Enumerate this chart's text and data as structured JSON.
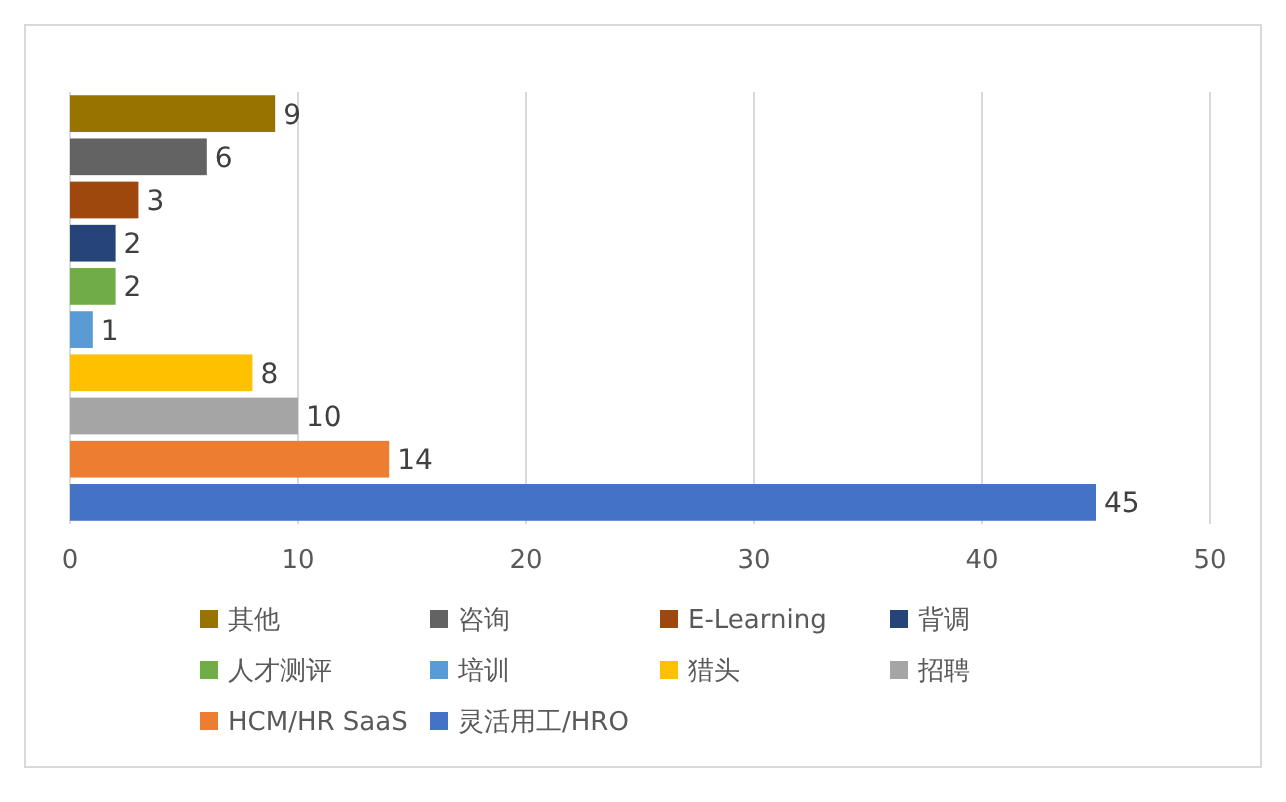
{
  "chart_data": {
    "type": "bar",
    "orientation": "horizontal",
    "categories": [
      null,
      null,
      null,
      null,
      null,
      null,
      null,
      null,
      null,
      null
    ],
    "series": [
      {
        "name": "其他",
        "color": "#997300",
        "values": [
          9,
          null,
          null,
          null,
          null,
          null,
          null,
          null,
          null,
          null
        ]
      },
      {
        "name": "咨询",
        "color": "#636363",
        "values": [
          null,
          6,
          null,
          null,
          null,
          null,
          null,
          null,
          null,
          null
        ]
      },
      {
        "name": "E-Learning",
        "color": "#9e480e",
        "values": [
          null,
          null,
          3,
          null,
          null,
          null,
          null,
          null,
          null,
          null
        ]
      },
      {
        "name": "背调",
        "color": "#264478",
        "values": [
          null,
          null,
          null,
          2,
          null,
          null,
          null,
          null,
          null,
          null
        ]
      },
      {
        "name": "人才测评",
        "color": "#70ad47",
        "values": [
          null,
          null,
          null,
          null,
          2,
          null,
          null,
          null,
          null,
          null
        ]
      },
      {
        "name": "培训",
        "color": "#5b9bd5",
        "values": [
          null,
          null,
          null,
          null,
          null,
          1,
          null,
          null,
          null,
          null
        ]
      },
      {
        "name": "猎头",
        "color": "#ffc000",
        "values": [
          null,
          null,
          null,
          null,
          null,
          null,
          8,
          null,
          null,
          null
        ]
      },
      {
        "name": "招聘",
        "color": "#a5a5a5",
        "values": [
          null,
          null,
          null,
          null,
          null,
          null,
          null,
          10,
          null,
          null
        ]
      },
      {
        "name": "HCM/HR SaaS",
        "color": "#ed7d31",
        "values": [
          null,
          null,
          null,
          null,
          null,
          null,
          null,
          null,
          14,
          null
        ]
      },
      {
        "name": "灵活用工/HRO",
        "color": "#4472c4",
        "values": [
          null,
          null,
          null,
          null,
          null,
          null,
          null,
          null,
          null,
          45
        ]
      }
    ],
    "xlim": [
      0,
      50
    ],
    "xticks": [
      0,
      10,
      20,
      30,
      40,
      50
    ],
    "grid": "x",
    "legend": "bottom",
    "data_labels": true
  }
}
